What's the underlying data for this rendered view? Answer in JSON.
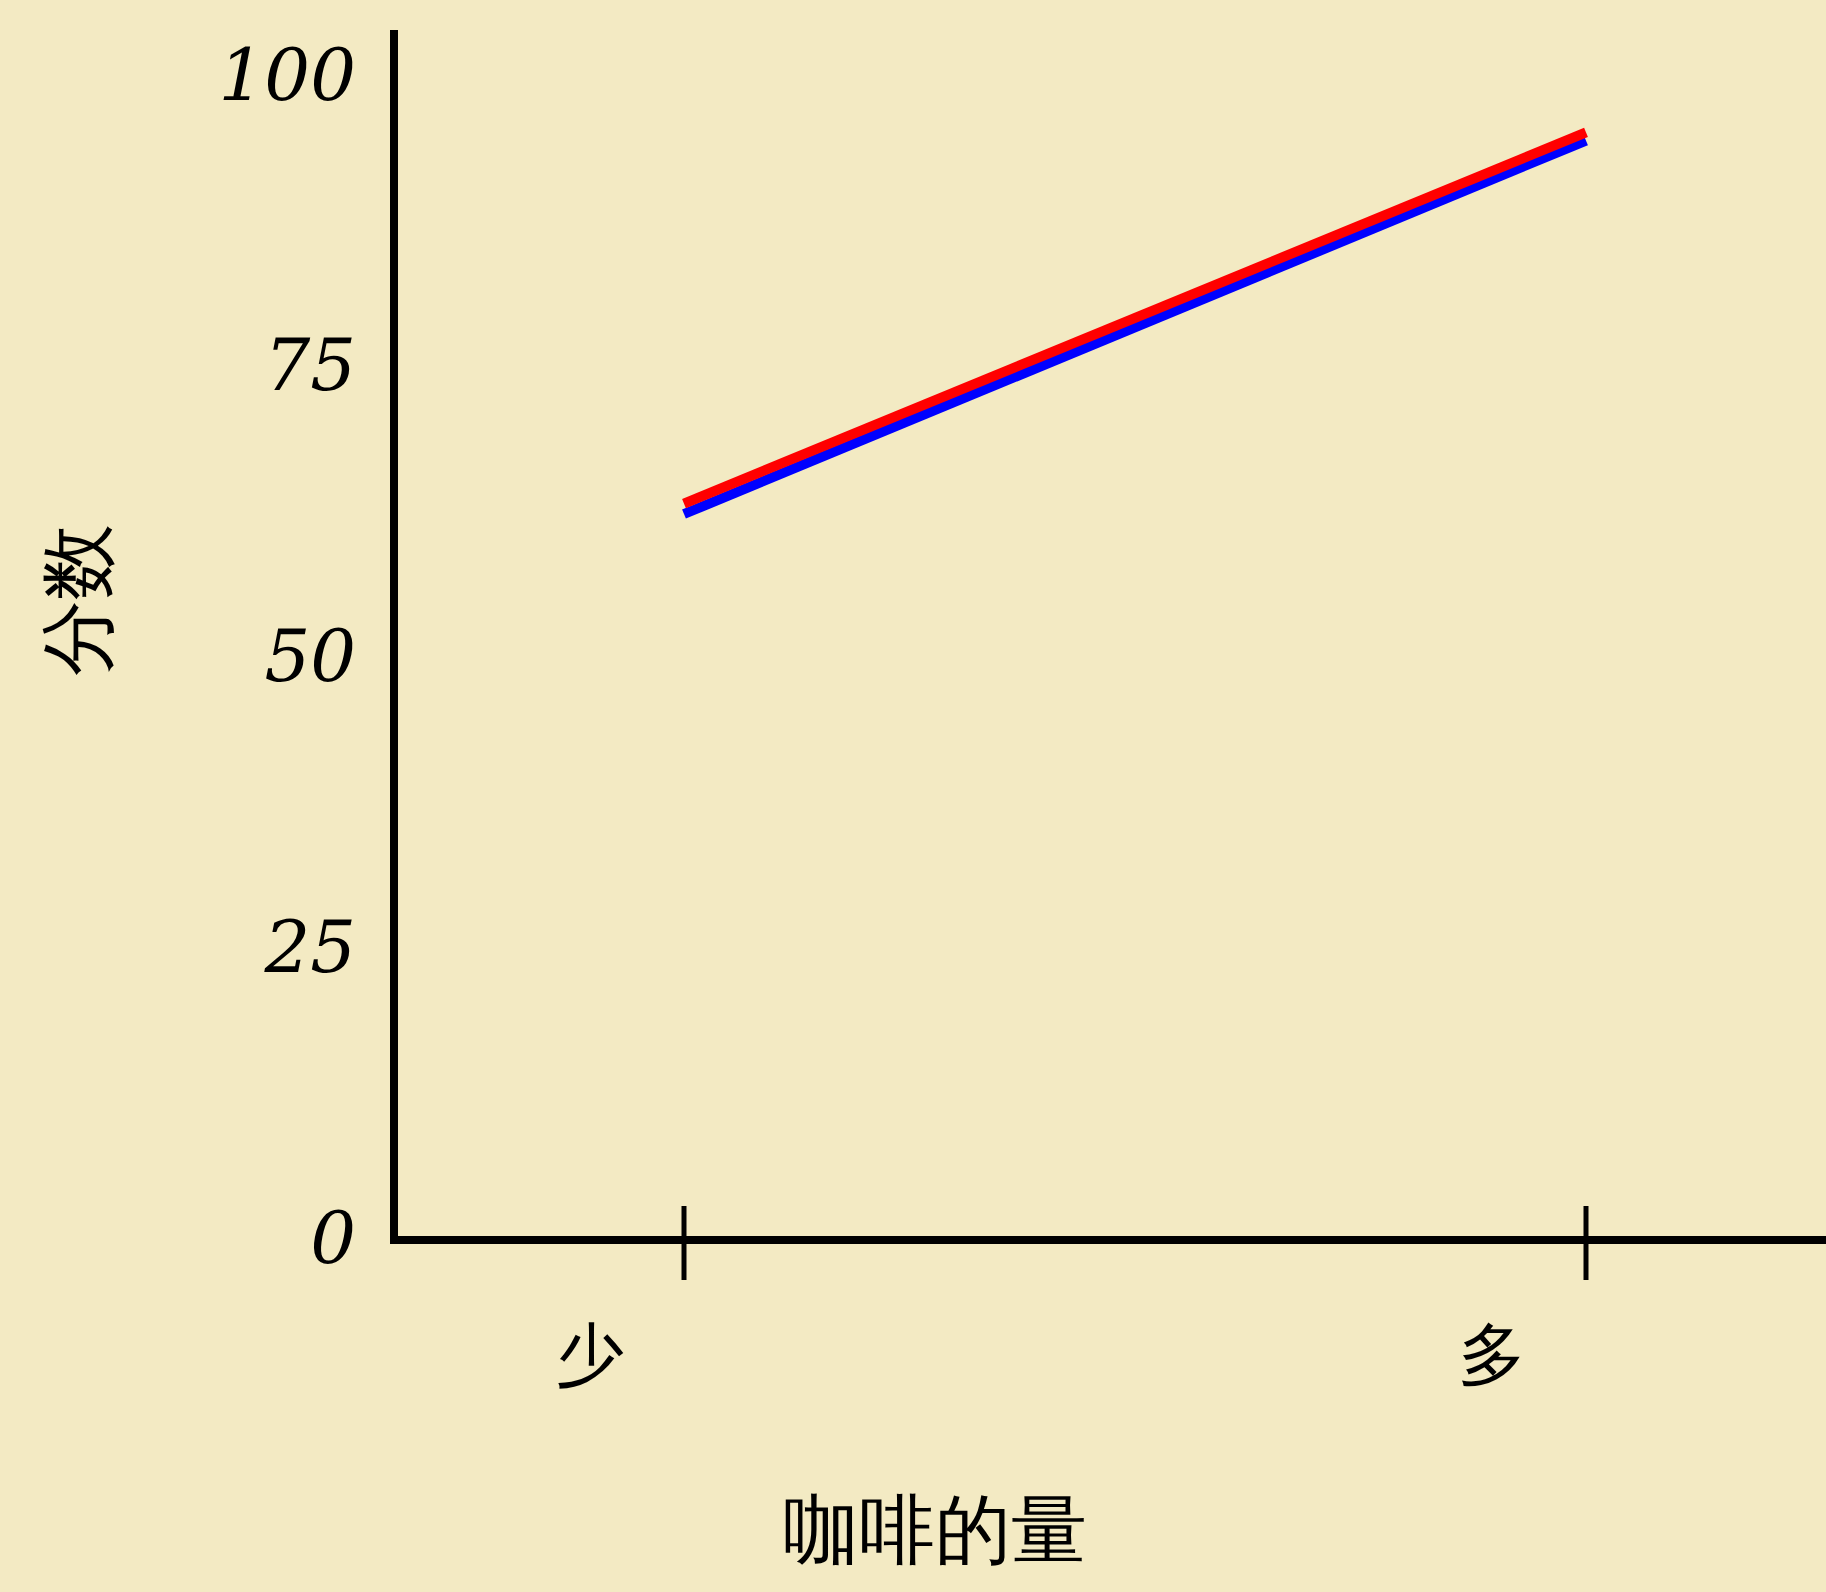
{
  "chart_data": {
    "type": "line",
    "xlabel": "咖啡的量",
    "ylabel": "分数",
    "categories": [
      "少",
      "多"
    ],
    "series": [
      {
        "color": "#0000ff",
        "values": [
          62.4,
          94.5
        ]
      },
      {
        "color": "#ff0000",
        "values": [
          63.3,
          95.2
        ]
      }
    ],
    "ylim": [
      0,
      104
    ],
    "yticks": [
      0,
      25,
      50,
      75,
      100
    ],
    "grid": false,
    "marker": "none",
    "line_style": "solid"
  }
}
